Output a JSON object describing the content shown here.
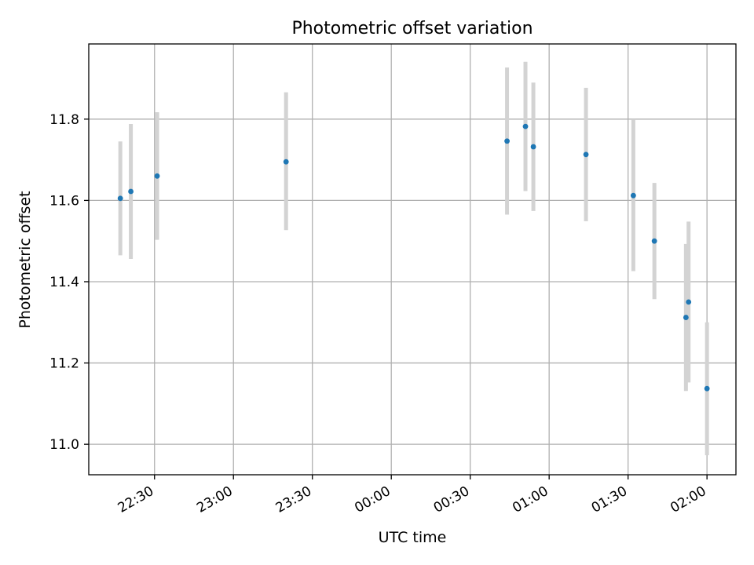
{
  "chart_data": {
    "type": "scatter",
    "title": "Photometric offset variation",
    "xlabel": "UTC time",
    "ylabel": "Photometric offset",
    "x_tick_labels": [
      "22:30",
      "23:00",
      "23:30",
      "00:00",
      "00:30",
      "01:00",
      "01:30",
      "02:00"
    ],
    "x_ticks": [
      "2023-01-01T22:30",
      "2023-01-01T23:00",
      "2023-01-01T23:30",
      "2023-01-02T00:00",
      "2023-01-02T00:30",
      "2023-01-02T01:00",
      "2023-01-02T01:30",
      "2023-01-02T02:00"
    ],
    "xlim": [
      "2023-01-01T22:05",
      "2023-01-02T02:11"
    ],
    "y_ticks": [
      11.0,
      11.2,
      11.4,
      11.6,
      11.8
    ],
    "y_tick_labels": [
      "11.0",
      "11.2",
      "11.4",
      "11.6",
      "11.8"
    ],
    "ylim": [
      10.925,
      11.985
    ],
    "grid": true,
    "colors": {
      "marker": "#1f77b4",
      "errorbar": "#d3d3d3",
      "grid": "#b0b0b0"
    },
    "series": [
      {
        "points": [
          {
            "x": "2023-01-01T22:17",
            "y": 11.605,
            "ylow": 11.465,
            "yhigh": 11.745
          },
          {
            "x": "2023-01-01T22:21",
            "y": 11.622,
            "ylow": 11.456,
            "yhigh": 11.788
          },
          {
            "x": "2023-01-01T22:31",
            "y": 11.66,
            "ylow": 11.503,
            "yhigh": 11.817
          },
          {
            "x": "2023-01-01T23:20",
            "y": 11.695,
            "ylow": 11.527,
            "yhigh": 11.866
          },
          {
            "x": "2023-01-02T00:44",
            "y": 11.746,
            "ylow": 11.565,
            "yhigh": 11.927
          },
          {
            "x": "2023-01-02T00:51",
            "y": 11.782,
            "ylow": 11.623,
            "yhigh": 11.941
          },
          {
            "x": "2023-01-02T00:54",
            "y": 11.732,
            "ylow": 11.574,
            "yhigh": 11.89
          },
          {
            "x": "2023-01-02T01:14",
            "y": 11.713,
            "ylow": 11.549,
            "yhigh": 11.877
          },
          {
            "x": "2023-01-02T01:32",
            "y": 11.612,
            "ylow": 11.426,
            "yhigh": 11.8
          },
          {
            "x": "2023-01-02T01:40",
            "y": 11.5,
            "ylow": 11.357,
            "yhigh": 11.643
          },
          {
            "x": "2023-01-02T01:52",
            "y": 11.312,
            "ylow": 11.131,
            "yhigh": 11.493
          },
          {
            "x": "2023-01-02T01:53",
            "y": 11.35,
            "ylow": 11.152,
            "yhigh": 11.548
          },
          {
            "x": "2023-01-02T02:00",
            "y": 11.137,
            "ylow": 10.973,
            "yhigh": 11.3
          }
        ]
      }
    ]
  }
}
